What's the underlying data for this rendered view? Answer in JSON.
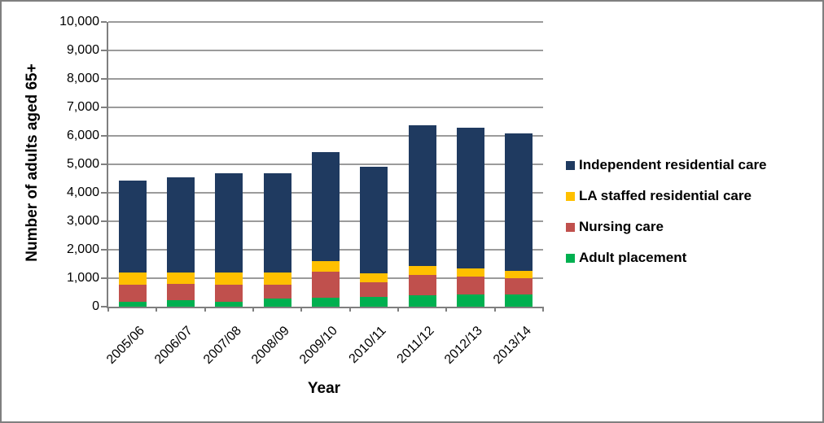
{
  "chart_data": {
    "type": "bar",
    "stacked": true,
    "categories": [
      "2005/06",
      "2006/07",
      "2007/08",
      "2008/09",
      "2009/10",
      "2010/11",
      "2011/12",
      "2012/13",
      "2013/14"
    ],
    "series": [
      {
        "name": "Adult placement",
        "color": "#00b050",
        "values": [
          160,
          220,
          180,
          280,
          310,
          350,
          390,
          420,
          430
        ]
      },
      {
        "name": "Nursing care",
        "color": "#c0504d",
        "values": [
          600,
          570,
          590,
          500,
          920,
          500,
          730,
          630,
          560
        ]
      },
      {
        "name": "LA staffed residential care",
        "color": "#ffc000",
        "values": [
          430,
          400,
          420,
          410,
          360,
          330,
          310,
          290,
          260
        ]
      },
      {
        "name": "Independent residential care",
        "color": "#1f3a60",
        "values": [
          3250,
          3340,
          3510,
          3500,
          3850,
          3730,
          4930,
          4950,
          4830
        ]
      }
    ],
    "totals": [
      4440,
      4530,
      4700,
      4690,
      5440,
      4910,
      6360,
      6290,
      6080
    ],
    "xlabel": "Year",
    "ylabel": "Number of adults aged 65+",
    "ylim": [
      0,
      10000
    ],
    "ytick_step": 1000,
    "ytick_labels": [
      "0",
      "1,000",
      "2,000",
      "3,000",
      "4,000",
      "5,000",
      "6,000",
      "7,000",
      "8,000",
      "9,000",
      "10,000"
    ],
    "grid": true,
    "legend_position": "right",
    "legend_order": [
      "Independent residential care",
      "LA staffed residential care",
      "Nursing care",
      "Adult placement"
    ]
  },
  "colors": {
    "frame_border": "#7f7f7f",
    "gridline": "#9b9b9b",
    "axis": "#7f7f7f",
    "text": "#000000"
  }
}
